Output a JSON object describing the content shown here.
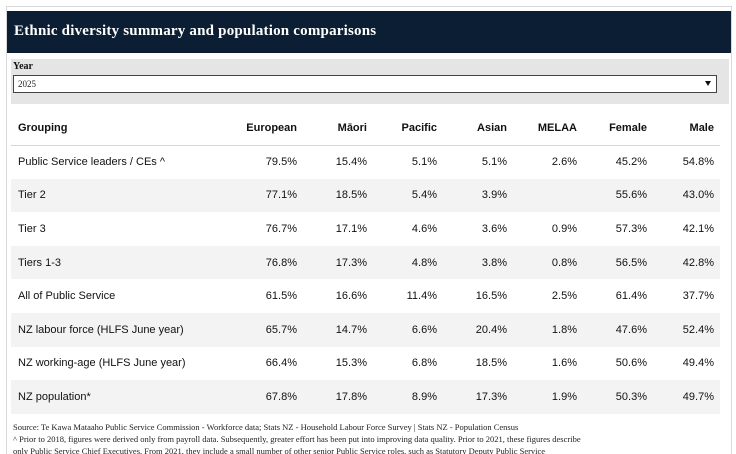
{
  "title": "Ethnic diversity summary and population comparisons",
  "filter": {
    "label": "Year",
    "value": "2025"
  },
  "table": {
    "columns": [
      "Grouping",
      "European",
      "Māori",
      "Pacific",
      "Asian",
      "MELAA",
      "Female",
      "Male"
    ],
    "rows": [
      [
        "Public Service leaders / CEs ^",
        "79.5%",
        "15.4%",
        "5.1%",
        "5.1%",
        "2.6%",
        "45.2%",
        "54.8%"
      ],
      [
        "Tier 2",
        "77.1%",
        "18.5%",
        "5.4%",
        "3.9%",
        "",
        "55.6%",
        "43.0%"
      ],
      [
        "Tier 3",
        "76.7%",
        "17.1%",
        "4.6%",
        "3.6%",
        "0.9%",
        "57.3%",
        "42.1%"
      ],
      [
        "Tiers 1-3",
        "76.8%",
        "17.3%",
        "4.8%",
        "3.8%",
        "0.8%",
        "56.5%",
        "42.8%"
      ],
      [
        "All of Public Service",
        "61.5%",
        "16.6%",
        "11.4%",
        "16.5%",
        "2.5%",
        "61.4%",
        "37.7%"
      ],
      [
        "NZ labour force (HLFS June year)",
        "65.7%",
        "14.7%",
        "6.6%",
        "20.4%",
        "1.8%",
        "47.6%",
        "52.4%"
      ],
      [
        "NZ working-age (HLFS June year)",
        "66.4%",
        "15.3%",
        "6.8%",
        "18.5%",
        "1.6%",
        "50.6%",
        "49.4%"
      ],
      [
        "NZ population*",
        "67.8%",
        "17.8%",
        "8.9%",
        "17.3%",
        "1.9%",
        "50.3%",
        "49.7%"
      ]
    ]
  },
  "footnotes": {
    "source": "Source:  Te Kawa Mataaho Public Service Commission - Workforce data; Stats NZ - Household Labour Force Survey  |  Stats NZ - Population Census",
    "note1": "^ Prior to 2018, figures were derived only from payroll data. Subsequently, greater effort has been put into improving data quality. Prior to 2021, these figures describe",
    "note2": "only Public Service Chief Executives. From 2021, they include a small number of other senior Public Service roles, such as Statutory Deputy Public Service"
  }
}
